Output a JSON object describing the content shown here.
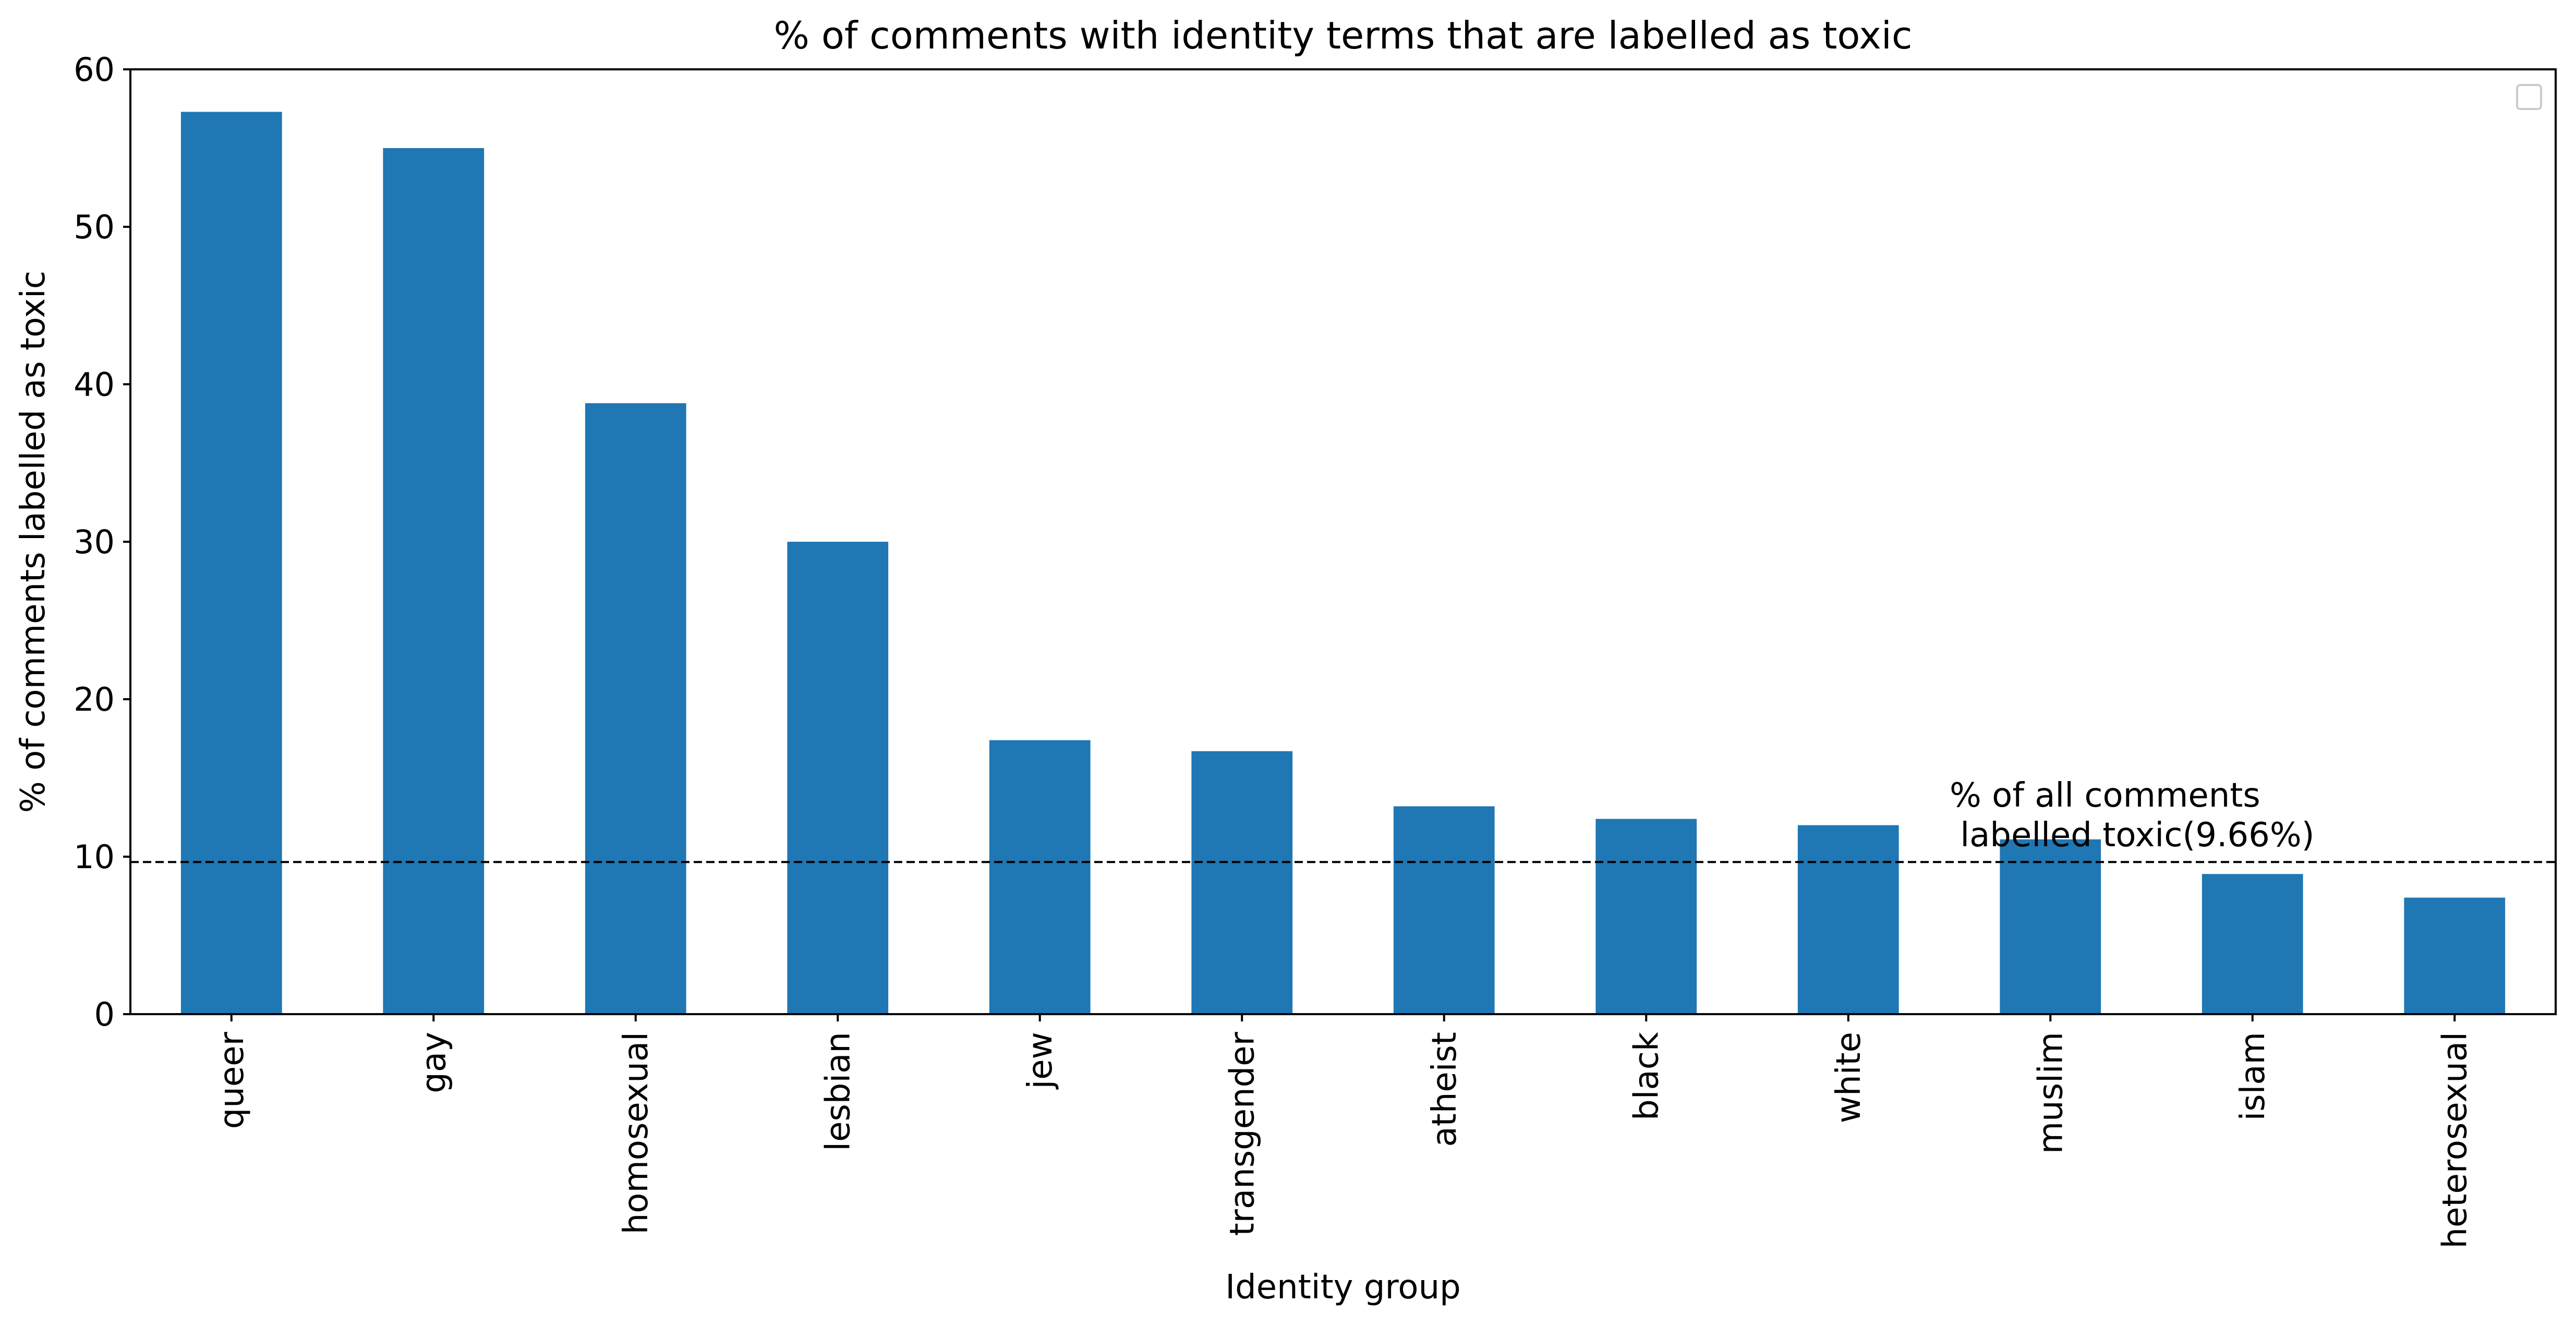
{
  "chart_data": {
    "type": "bar",
    "title": "% of comments with identity terms that are labelled as toxic",
    "xlabel": "Identity group",
    "ylabel": "% of comments labelled as toxic",
    "categories": [
      "queer",
      "gay",
      "homosexual",
      "lesbian",
      "jew",
      "transgender",
      "atheist",
      "black",
      "white",
      "muslim",
      "islam",
      "heterosexual"
    ],
    "values": [
      57.3,
      55.0,
      38.8,
      30.0,
      17.4,
      16.7,
      13.2,
      12.4,
      12.0,
      11.1,
      8.9,
      7.4
    ],
    "ylim": [
      0,
      60
    ],
    "yticks": [
      "0",
      "10",
      "20",
      "30",
      "40",
      "50",
      "60"
    ],
    "reference_line": {
      "value": 9.66,
      "style": "dashed"
    },
    "annotation": {
      "line1": "% of all comments",
      "line2": " labelled toxic(9.66%)"
    },
    "bar_color": "#1f77b4",
    "legend": "top-right, empty",
    "grid": false
  }
}
